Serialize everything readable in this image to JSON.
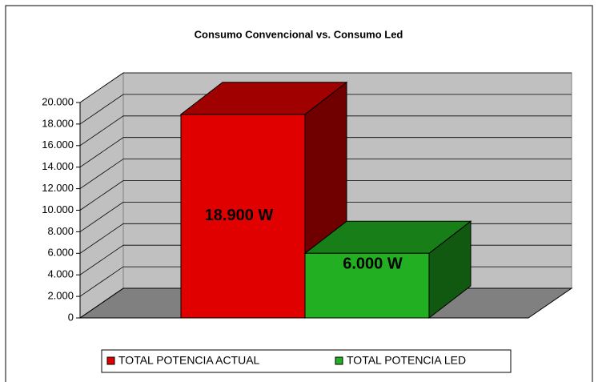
{
  "chart_data": {
    "type": "bar3d",
    "title": "Consumo Convencional vs. Consumo Led",
    "categories": [
      null
    ],
    "series": [
      {
        "name": "TOTAL POTENCIA ACTUAL",
        "color": "#e00000",
        "values": [
          18900
        ],
        "value_labels": [
          "18.900 W"
        ]
      },
      {
        "name": "TOTAL POTENCIA LED",
        "color": "#22b022",
        "values": [
          6000
        ],
        "value_labels": [
          "6.000 W"
        ]
      }
    ],
    "ylim": [
      0,
      20000
    ],
    "yticks": [
      0,
      {
        "value": 2000,
        "label": "2.000"
      },
      {
        "value": 4000,
        "label": "4.000"
      },
      {
        "value": 6000,
        "label": "6.000"
      },
      {
        "value": 8000,
        "label": "8.000"
      },
      {
        "value": 10000,
        "label": "10.000"
      },
      {
        "value": 12000,
        "label": "12.000"
      },
      {
        "value": 14000,
        "label": "14.000"
      },
      {
        "value": 16000,
        "label": "16.000"
      },
      {
        "value": 18000,
        "label": "18.000"
      },
      {
        "value": 20000,
        "label": "20.000"
      }
    ],
    "grid": true,
    "legend": "bottom"
  }
}
